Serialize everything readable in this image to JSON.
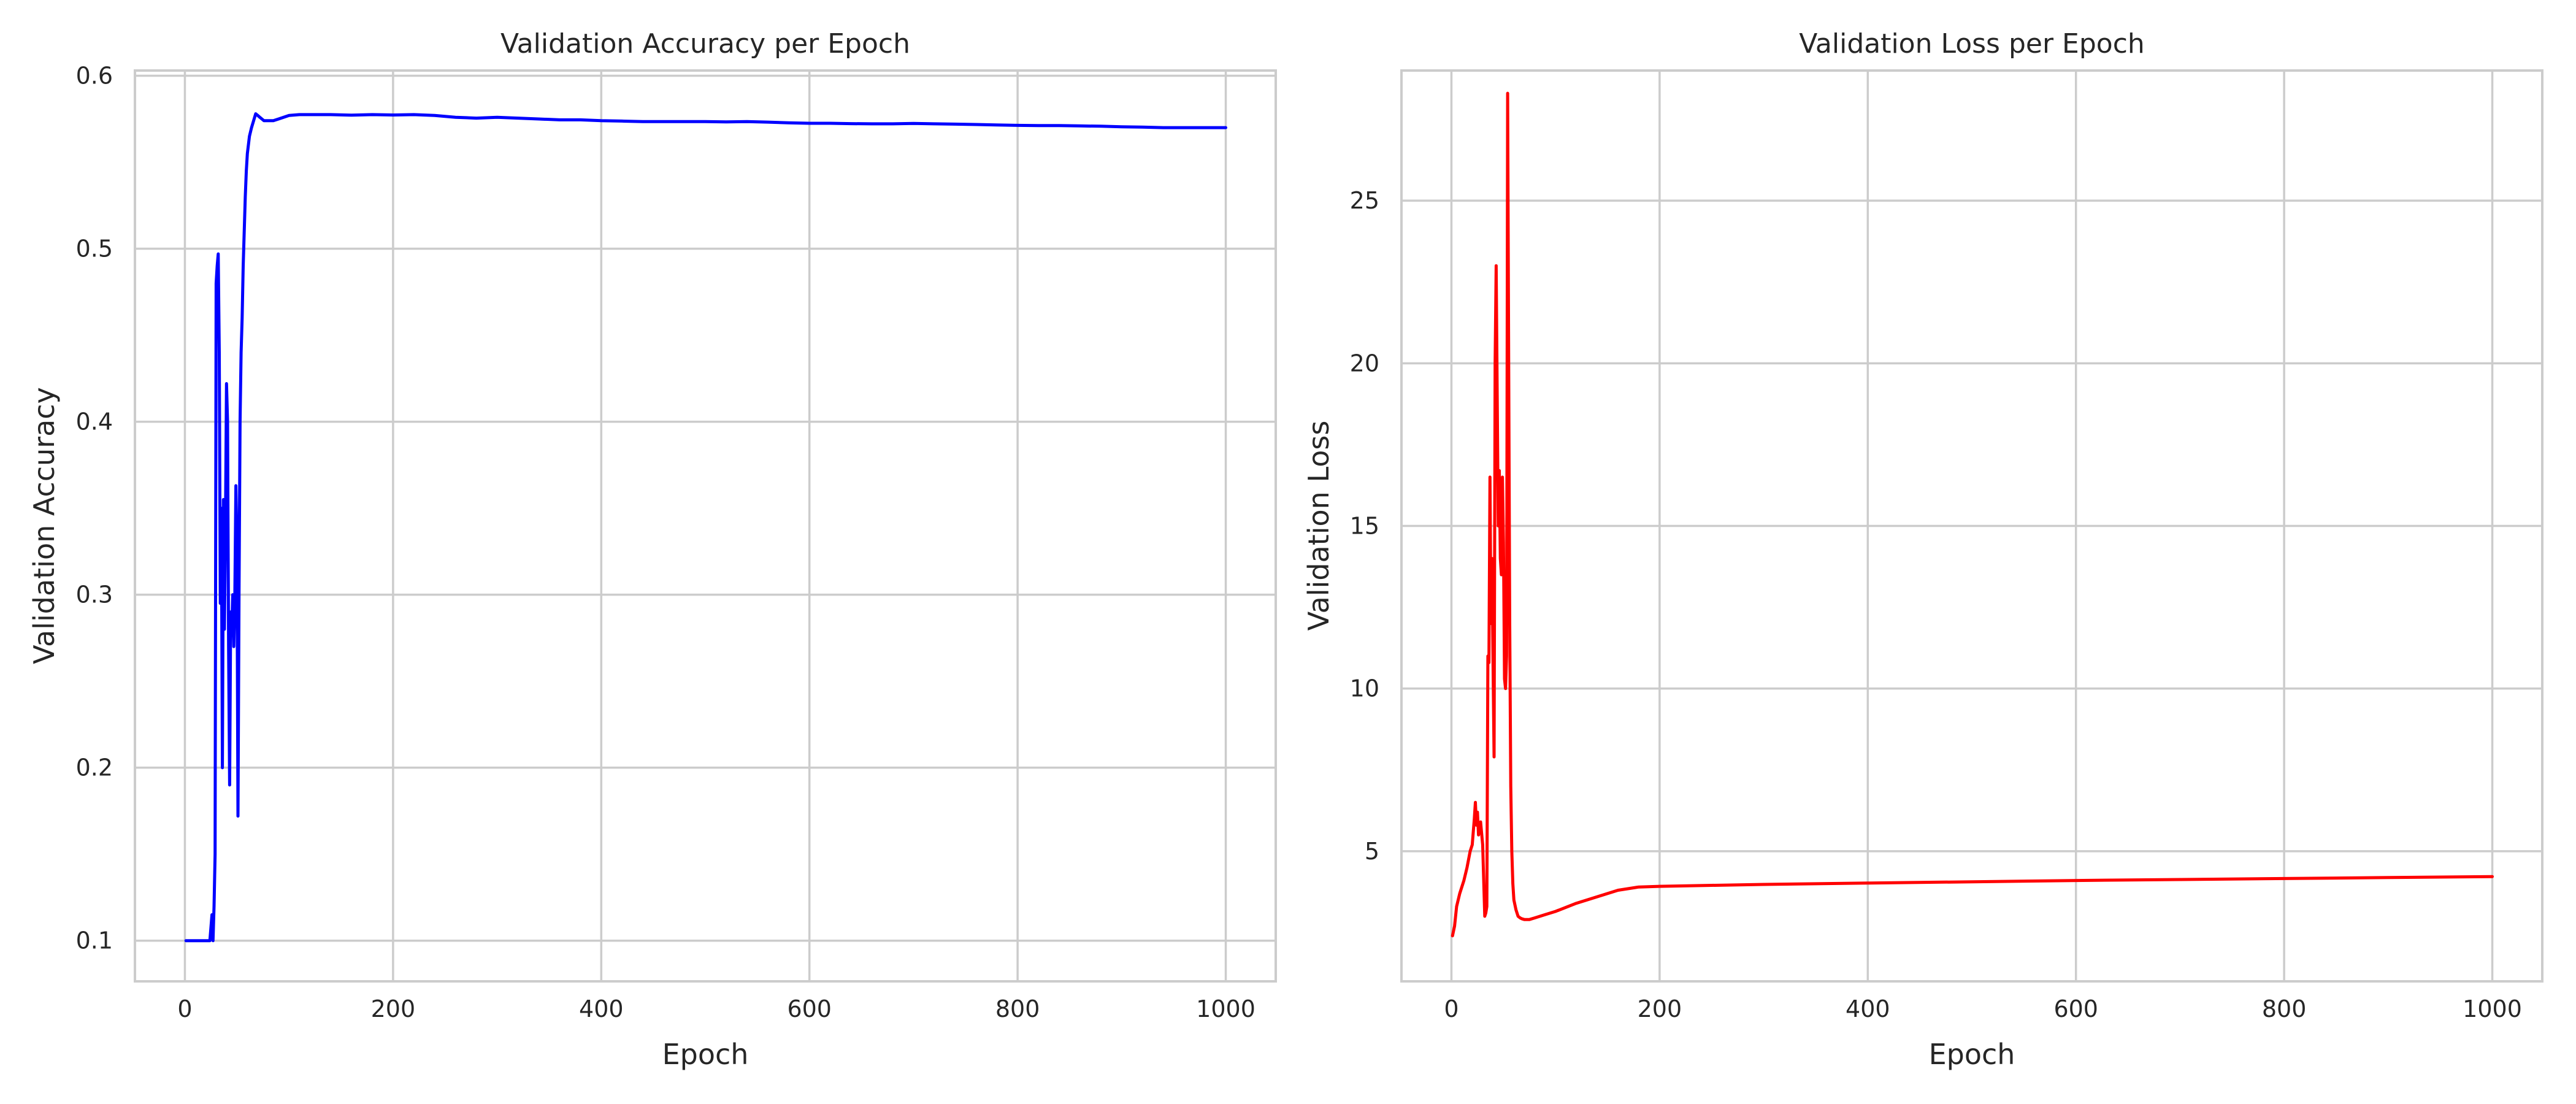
{
  "chart_data": [
    {
      "type": "line",
      "title": "Validation Accuracy per Epoch",
      "xlabel": "Epoch",
      "ylabel": "Validation Accuracy",
      "xlim": [
        -48,
        1048
      ],
      "ylim": [
        0.0765,
        0.603
      ],
      "xticks": [
        0,
        200,
        400,
        600,
        800,
        1000
      ],
      "yticks": [
        0.1,
        0.2,
        0.3,
        0.4,
        0.5,
        0.6
      ],
      "grid": true,
      "legend": "none",
      "series": [
        {
          "color": "#0000ff",
          "x": [
            1,
            10,
            20,
            24,
            26,
            27,
            28,
            29,
            30,
            31,
            32,
            33,
            34,
            35,
            36,
            37,
            38,
            39,
            40,
            41,
            42,
            43,
            44,
            45,
            46,
            47,
            48,
            49,
            50,
            51,
            52,
            53,
            54,
            55,
            56,
            57,
            58,
            59,
            60,
            62,
            64,
            66,
            68,
            70,
            72,
            74,
            76,
            80,
            85,
            90,
            100,
            110,
            120,
            140,
            160,
            180,
            200,
            220,
            240,
            260,
            280,
            300,
            320,
            340,
            360,
            380,
            400,
            420,
            440,
            460,
            480,
            500,
            520,
            540,
            560,
            580,
            600,
            620,
            640,
            660,
            680,
            700,
            720,
            740,
            760,
            780,
            800,
            820,
            840,
            860,
            880,
            900,
            920,
            940,
            960,
            980,
            1000
          ],
          "y": [
            0.1,
            0.1,
            0.1,
            0.1,
            0.115,
            0.1,
            0.12,
            0.15,
            0.48,
            0.49,
            0.497,
            0.44,
            0.295,
            0.35,
            0.2,
            0.355,
            0.28,
            0.34,
            0.422,
            0.4,
            0.27,
            0.19,
            0.29,
            0.28,
            0.3,
            0.27,
            0.3,
            0.363,
            0.33,
            0.172,
            0.3,
            0.4,
            0.44,
            0.46,
            0.49,
            0.51,
            0.53,
            0.545,
            0.555,
            0.565,
            0.57,
            0.574,
            0.578,
            0.577,
            0.576,
            0.575,
            0.574,
            0.574,
            0.574,
            0.575,
            0.577,
            0.5775,
            0.5775,
            0.5775,
            0.5772,
            0.5775,
            0.5773,
            0.5775,
            0.577,
            0.576,
            0.5755,
            0.576,
            0.5755,
            0.575,
            0.5745,
            0.5745,
            0.574,
            0.5738,
            0.5735,
            0.5735,
            0.5735,
            0.5735,
            0.5733,
            0.5735,
            0.5732,
            0.5728,
            0.5725,
            0.5725,
            0.5723,
            0.5722,
            0.5722,
            0.5724,
            0.5722,
            0.572,
            0.5718,
            0.5715,
            0.5713,
            0.5712,
            0.5712,
            0.571,
            0.5708,
            0.5705,
            0.5703,
            0.57,
            0.57,
            0.57,
            0.57
          ]
        }
      ]
    },
    {
      "type": "line",
      "title": "Validation Loss per Epoch",
      "xlabel": "Epoch",
      "ylabel": "Validation Loss",
      "xlim": [
        -48,
        1048
      ],
      "ylim": [
        1.0,
        29.0
      ],
      "xticks": [
        0,
        200,
        400,
        600,
        800,
        1000
      ],
      "yticks": [
        5,
        10,
        15,
        20,
        25
      ],
      "grid": true,
      "legend": "none",
      "series": [
        {
          "color": "#ff0000",
          "x": [
            1,
            3,
            5,
            8,
            12,
            15,
            18,
            20,
            22,
            23,
            24,
            25,
            26,
            28,
            30,
            32,
            33,
            34,
            35,
            36,
            37,
            38,
            39,
            40,
            41,
            42,
            43,
            44,
            45,
            46,
            47,
            48,
            49,
            50,
            51,
            52,
            53,
            54,
            55,
            56,
            57,
            58,
            59,
            60,
            62,
            64,
            66,
            68,
            70,
            75,
            80,
            90,
            100,
            120,
            140,
            160,
            180,
            200,
            250,
            300,
            400,
            500,
            600,
            700,
            800,
            900,
            1000
          ],
          "y": [
            2.4,
            2.7,
            3.3,
            3.7,
            4.1,
            4.5,
            5.0,
            5.2,
            6.0,
            6.5,
            5.8,
            6.2,
            5.5,
            5.9,
            5.2,
            3.0,
            3.1,
            3.3,
            11.0,
            10.8,
            16.5,
            12.0,
            14.0,
            10.8,
            7.9,
            20.0,
            23.0,
            19.0,
            15.0,
            16.7,
            14.0,
            13.5,
            16.5,
            14.5,
            10.3,
            10.0,
            11.0,
            28.3,
            20.0,
            12.0,
            7.0,
            5.0,
            4.0,
            3.5,
            3.2,
            3.0,
            2.95,
            2.92,
            2.9,
            2.9,
            2.95,
            3.05,
            3.15,
            3.4,
            3.6,
            3.8,
            3.9,
            3.92,
            3.95,
            3.98,
            4.02,
            4.06,
            4.1,
            4.13,
            4.16,
            4.19,
            4.22
          ]
        }
      ]
    }
  ]
}
